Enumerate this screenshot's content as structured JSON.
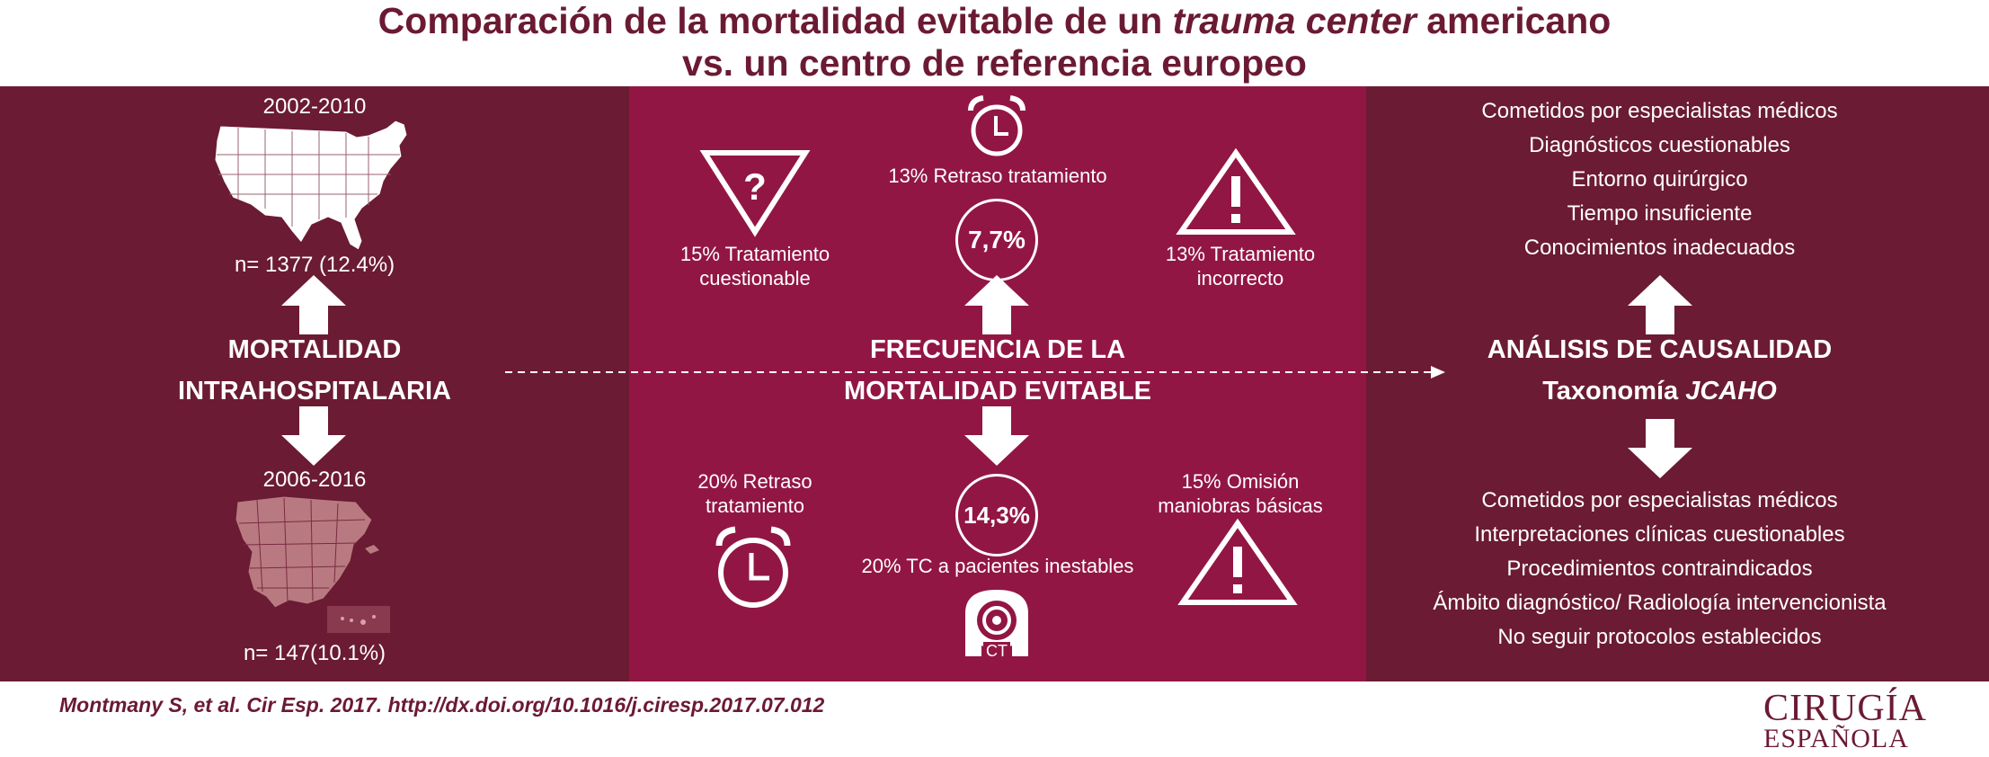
{
  "title": {
    "line1_pre": "Comparación de la mortalidad evitable de un ",
    "line1_italic": "trauma center",
    "line1_post": " americano",
    "line2": "vs. un centro de referencia europeo"
  },
  "left": {
    "us_period": "2002-2010",
    "us_n": "n= 1377 (12.4%)",
    "label_line1": "MORTALIDAD",
    "label_line2": "INTRAHOSPITALARIA",
    "es_period": "2006-2016",
    "es_n": "n= 147(10.1%)"
  },
  "middle": {
    "top_left": [
      "15% Tratamiento",
      "cuestionable"
    ],
    "top_center": "13% Retraso tratamiento",
    "top_circle": "7,7%",
    "top_right": [
      "13% Tratamiento",
      "incorrecto"
    ],
    "label_line1": "FRECUENCIA DE LA",
    "label_line2": "MORTALIDAD EVITABLE",
    "bottom_left": [
      "20% Retraso",
      "tratamiento"
    ],
    "bottom_circle": "14,3%",
    "bottom_center": "20% TC a pacientes inestables",
    "bottom_right": [
      "15% Omisión",
      "maniobras básicas"
    ],
    "ct_label": "CT"
  },
  "right": {
    "top_list": [
      "Cometidos por especialistas médicos",
      "Diagnósticos cuestionables",
      "Entorno quirúrgico",
      "Tiempo insuficiente",
      "Conocimientos inadecuados"
    ],
    "label_line1": "ANÁLISIS DE CAUSALIDAD",
    "label_line2_pre": "Taxonomía ",
    "label_line2_italic": "JCAHO",
    "bottom_list": [
      "Cometidos por especialistas médicos",
      "Interpretaciones clínicas cuestionables",
      "Procedimientos contraindicados",
      "Ámbito diagnóstico/ Radiología intervencionista",
      "No seguir protocolos establecidos"
    ]
  },
  "footer": {
    "citation": "Montmany S, et al. Cir Esp. 2017. http://dx.doi.org/10.1016/j.ciresp.2017.07.012",
    "logo_line1": "CIRUGÍA",
    "logo_line2": "ESPAÑOLA"
  },
  "colors": {
    "title": "#6b1a33",
    "side_band": "#6b1b33",
    "middle_band": "#921643",
    "map_spain": "#b87a80"
  },
  "icons": [
    "us-map-icon",
    "spain-map-icon",
    "question-triangle-icon",
    "alarm-clock-icon",
    "warning-triangle-icon",
    "ct-scanner-icon",
    "arrow-up-icon",
    "arrow-down-icon"
  ]
}
